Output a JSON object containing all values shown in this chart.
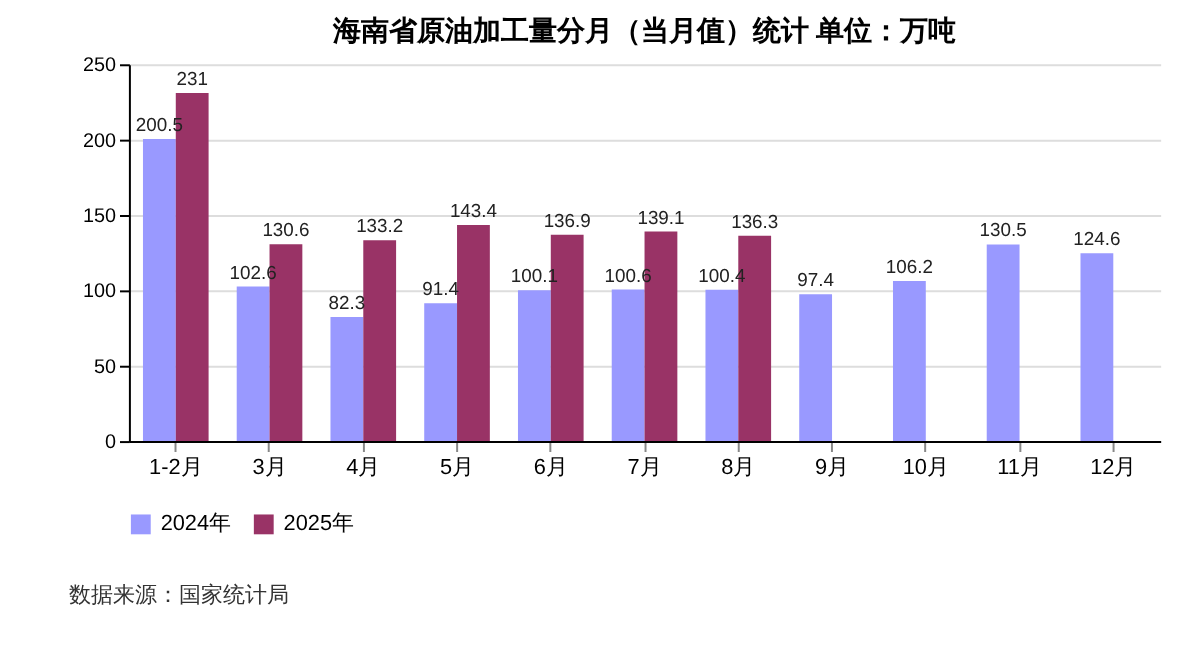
{
  "chart_data": {
    "type": "bar",
    "title": "海南省原油加工量分月（当月值）统计  单位：万吨",
    "categories": [
      "1-2月",
      "3月",
      "4月",
      "5月",
      "6月",
      "7月",
      "8月",
      "9月",
      "10月",
      "11月",
      "12月"
    ],
    "series": [
      {
        "name": "2024年",
        "color": "#9999ff",
        "values": [
          200.5,
          102.6,
          82.3,
          91.4,
          100.1,
          100.6,
          100.4,
          97.4,
          106.2,
          130.5,
          124.6
        ]
      },
      {
        "name": "2025年",
        "color": "#993366",
        "values": [
          231,
          130.6,
          133.2,
          143.4,
          136.9,
          139.1,
          136.3,
          null,
          null,
          null,
          null
        ]
      }
    ],
    "ylim": [
      0,
      250
    ],
    "yticks": [
      0,
      50,
      100,
      150,
      200,
      250
    ],
    "grid": "y",
    "legend": "bottom",
    "data_labels": true,
    "annotations": [
      "数据来源：国家统计局"
    ]
  }
}
